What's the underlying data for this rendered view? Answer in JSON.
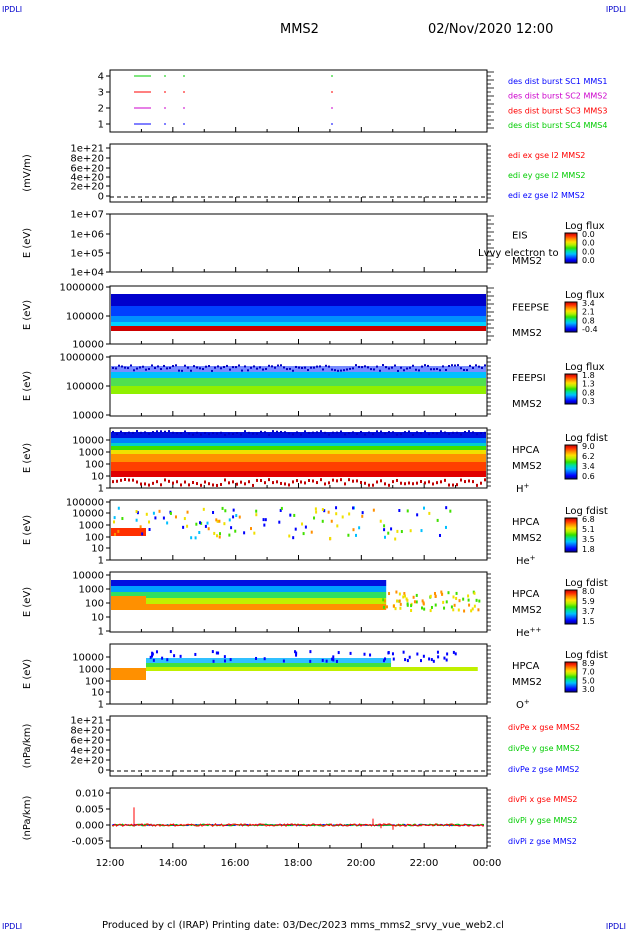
{
  "corner_labels": {
    "tl": "IPDLI",
    "tr": "IPDLI",
    "bl": "IPDLI",
    "br": "IPDLI"
  },
  "header": {
    "spacecraft": "MMS2",
    "datetime": "02/Nov/2020 12:00"
  },
  "footer": {
    "text": "Produced by cl (IRAP)   Printing date: 03/Dec/2023   mms_mms2_srvy_vue_web2.cl"
  },
  "colors": {
    "red": "#ff0000",
    "green": "#00cc00",
    "blue": "#0000ff",
    "magenta": "#cc00cc"
  },
  "chart_data": [
    {
      "type": "line",
      "name": "burst-availability",
      "yticks": [
        "4",
        "3",
        "2",
        "1"
      ],
      "legend": [
        {
          "label": "des dist burst SC1 MMS1",
          "color": "#0000ff"
        },
        {
          "label": "des dist burst SC2 MMS2",
          "color": "#cc00cc"
        },
        {
          "label": "des dist burst SC3 MMS3",
          "color": "#ff0000"
        },
        {
          "label": "des dist burst SC4 MMS4",
          "color": "#00cc00"
        }
      ]
    },
    {
      "type": "line",
      "name": "edi-efield",
      "ylabel": "(mV/m)",
      "yticks": [
        "1e+21",
        "8e+20",
        "6e+20",
        "4e+20",
        "2e+20",
        "0"
      ],
      "legend": [
        {
          "label": "edi ex gse l2 MMS2",
          "color": "#ff0000"
        },
        {
          "label": "edi ey gse l2 MMS2",
          "color": "#00cc00"
        },
        {
          "label": "edi ez gse l2 MMS2",
          "color": "#0000ff"
        }
      ]
    },
    {
      "type": "heatmap",
      "name": "eis",
      "ylabel": "E (eV)",
      "yticks": [
        "1e+07",
        "1e+06",
        "1e+05",
        "1e+04"
      ],
      "instrument": [
        "EIS",
        "MMS2"
      ],
      "overlay": "Lvvy electron to",
      "cbar_title": "Log flux",
      "cbar_ticks": [
        "0.0",
        "0.0",
        "0.0",
        "0.0"
      ]
    },
    {
      "type": "heatmap",
      "name": "feeps-electron",
      "ylabel": "E (eV)",
      "yticks": [
        "1000000",
        "100000",
        "10000"
      ],
      "instrument": [
        "FEEPSE",
        "MMS2"
      ],
      "cbar_title": "Log flux",
      "cbar_ticks": [
        "3.4",
        "2.1",
        "0.8",
        "-0.4"
      ]
    },
    {
      "type": "heatmap",
      "name": "feeps-ion",
      "ylabel": "E (eV)",
      "yticks": [
        "1000000",
        "100000",
        "10000"
      ],
      "instrument": [
        "FEEPSI",
        "MMS2"
      ],
      "cbar_title": "Log flux",
      "cbar_ticks": [
        "1.8",
        "1.3",
        "0.8",
        "0.3"
      ]
    },
    {
      "type": "heatmap",
      "name": "hpca-h",
      "ylabel": "E (eV)",
      "yticks": [
        "10000",
        "1000",
        "100",
        "10",
        "1"
      ],
      "instrument": [
        "HPCA",
        "MMS2"
      ],
      "species": "H",
      "charge": "+",
      "cbar_title": "Log fdist",
      "cbar_ticks": [
        "9.0",
        "6.2",
        "3.4",
        "0.6"
      ]
    },
    {
      "type": "heatmap",
      "name": "hpca-he",
      "ylabel": "E (eV)",
      "yticks": [
        "100000",
        "10000",
        "1000",
        "100",
        "10",
        "1"
      ],
      "instrument": [
        "HPCA",
        "MMS2"
      ],
      "species": "He",
      "charge": "+",
      "cbar_title": "Log fdist",
      "cbar_ticks": [
        "6.8",
        "5.1",
        "3.5",
        "1.8"
      ]
    },
    {
      "type": "heatmap",
      "name": "hpca-he2",
      "ylabel": "E (eV)",
      "yticks": [
        "10000",
        "1000",
        "100",
        "10",
        "1"
      ],
      "instrument": [
        "HPCA",
        "MMS2"
      ],
      "species": "He",
      "charge": "++",
      "cbar_title": "Log fdist",
      "cbar_ticks": [
        "8.0",
        "5.9",
        "3.7",
        "1.5"
      ]
    },
    {
      "type": "heatmap",
      "name": "hpca-o",
      "ylabel": "E (eV)",
      "yticks": [
        "10000",
        "1000",
        "100",
        "10",
        "1"
      ],
      "instrument": [
        "HPCA",
        "MMS2"
      ],
      "species": "O",
      "charge": "+",
      "cbar_title": "Log fdist",
      "cbar_ticks": [
        "8.9",
        "7.0",
        "5.0",
        "3.0"
      ]
    },
    {
      "type": "line",
      "name": "divpe",
      "ylabel": "(nPa/km)",
      "yticks": [
        "1e+21",
        "8e+20",
        "6e+20",
        "4e+20",
        "2e+20",
        "0"
      ],
      "legend": [
        {
          "label": "divPe x gse MMS2",
          "color": "#ff0000"
        },
        {
          "label": "divPe y gse MMS2",
          "color": "#00cc00"
        },
        {
          "label": "divPe z gse MMS2",
          "color": "#0000ff"
        }
      ]
    },
    {
      "type": "line",
      "name": "divpi",
      "ylabel": "(nPa/km)",
      "yticks": [
        "0.010",
        "0.005",
        "0.000",
        "-0.005"
      ],
      "legend": [
        {
          "label": "divPi x gse MMS2",
          "color": "#ff0000"
        },
        {
          "label": "divPi y gse MMS2",
          "color": "#00cc00"
        },
        {
          "label": "divPi z gse MMS2",
          "color": "#0000ff"
        }
      ]
    }
  ],
  "xaxis": {
    "ticks": [
      "12:00",
      "14:00",
      "16:00",
      "18:00",
      "20:00",
      "22:00",
      "00:00"
    ]
  }
}
